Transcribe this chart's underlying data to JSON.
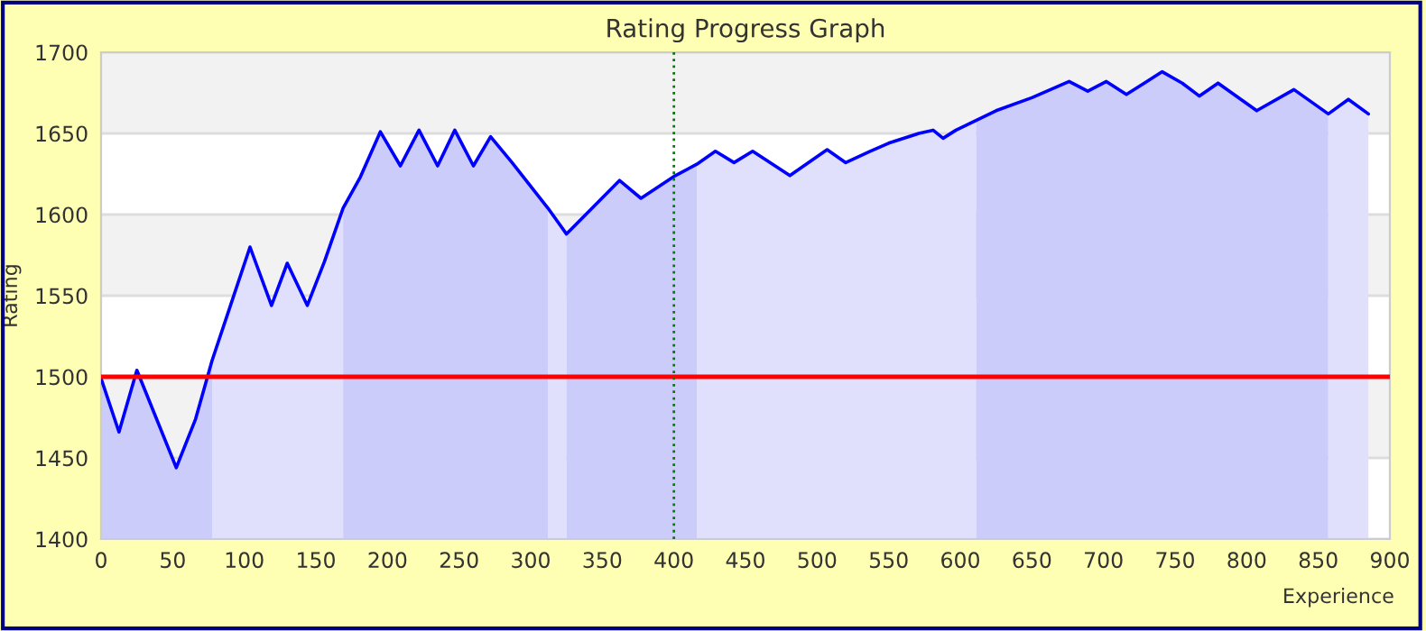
{
  "chart_data": {
    "type": "area",
    "title": "Rating Progress Graph",
    "xlabel": "Experience",
    "ylabel": "Rating",
    "xlim": [
      0,
      900
    ],
    "xticks": [
      0,
      50,
      100,
      150,
      200,
      250,
      300,
      350,
      400,
      450,
      500,
      550,
      600,
      650,
      700,
      750,
      800,
      850,
      900
    ],
    "ylim": [
      1400,
      1700
    ],
    "yticks": [
      1400,
      1450,
      1500,
      1550,
      1600,
      1650,
      1700
    ],
    "grid": "y",
    "series": [
      {
        "color": "#ccccfb",
        "x": [
          0,
          12.5,
          25,
          52.5,
          66,
          77.5
        ],
        "values": [
          1499,
          1466,
          1504,
          1444,
          1474,
          1510
        ]
      },
      {
        "color": "#e0e0fc",
        "x": [
          77.5,
          90,
          104,
          119,
          130,
          144,
          156,
          169
        ],
        "values": [
          1510,
          1543,
          1580,
          1544,
          1570,
          1544,
          1571,
          1604
        ]
      },
      {
        "color": "#ccccfb",
        "x": [
          169,
          181,
          195,
          209,
          222,
          235,
          247,
          260,
          272,
          287,
          312
        ],
        "values": [
          1604,
          1623,
          1651,
          1630,
          1652,
          1630,
          1652,
          1630,
          1648,
          1632,
          1604
        ]
      },
      {
        "color": "#e0e0fc",
        "x": [
          312,
          325
        ],
        "values": [
          1604,
          1588
        ]
      },
      {
        "color": "#ccccfb",
        "x": [
          325,
          362,
          377,
          401,
          416
        ],
        "values": [
          1588,
          1621,
          1610,
          1624,
          1631
        ]
      },
      {
        "color": "#e0e0fc",
        "x": [
          416,
          429,
          442,
          455,
          481,
          507,
          520,
          537,
          550,
          571,
          581,
          588,
          597,
          611
        ],
        "values": [
          1631,
          1639,
          1632,
          1639,
          1624,
          1640,
          1632,
          1639,
          1644,
          1650,
          1652,
          1647,
          1652,
          1658
        ]
      },
      {
        "color": "#ccccfb",
        "x": [
          611,
          625,
          650,
          676,
          689,
          702,
          716,
          741,
          755,
          767,
          780,
          807,
          833,
          857
        ],
        "values": [
          1658,
          1664,
          1672,
          1682,
          1676,
          1682,
          1674,
          1688,
          1681,
          1673,
          1681,
          1664,
          1677,
          1662
        ]
      },
      {
        "color": "#e0e0fc",
        "x": [
          857,
          871,
          885
        ],
        "values": [
          1662,
          1671,
          1662
        ]
      },
      {
        "type": "line",
        "color": "#0000ff",
        "x": [
          0,
          12.5,
          25,
          52.5,
          66,
          77.5,
          90,
          104,
          119,
          130,
          144,
          156,
          169,
          181,
          195,
          209,
          222,
          235,
          247,
          260,
          272,
          287,
          312,
          325,
          362,
          377,
          401,
          416,
          429,
          442,
          455,
          481,
          507,
          520,
          537,
          550,
          571,
          581,
          588,
          597,
          611,
          625,
          650,
          676,
          689,
          702,
          716,
          741,
          755,
          767,
          780,
          807,
          833,
          857,
          871,
          885
        ],
        "values": [
          1499,
          1466,
          1504,
          1444,
          1474,
          1510,
          1543,
          1580,
          1544,
          1570,
          1544,
          1571,
          1604,
          1623,
          1651,
          1630,
          1652,
          1630,
          1652,
          1630,
          1648,
          1632,
          1604,
          1588,
          1621,
          1610,
          1624,
          1631,
          1639,
          1632,
          1639,
          1624,
          1640,
          1632,
          1639,
          1644,
          1650,
          1652,
          1647,
          1652,
          1658,
          1664,
          1672,
          1682,
          1676,
          1682,
          1674,
          1688,
          1681,
          1673,
          1681,
          1664,
          1677,
          1662,
          1671,
          1662
        ]
      }
    ],
    "ref_lines": [
      {
        "axis": "y",
        "value": 1500,
        "color": "#ff0000",
        "line_style": "solid"
      },
      {
        "axis": "x",
        "value": 400,
        "color": "#008000",
        "line_style": "dotted"
      }
    ],
    "bands": [
      {
        "axis": "y",
        "from": 1650,
        "to": 1700,
        "color": "#f2f2f2"
      },
      {
        "axis": "y",
        "from": 1550,
        "to": 1600,
        "color": "#f2f2f2"
      },
      {
        "axis": "y",
        "from": 1450,
        "to": 1500,
        "color": "#f2f2f2"
      }
    ]
  }
}
